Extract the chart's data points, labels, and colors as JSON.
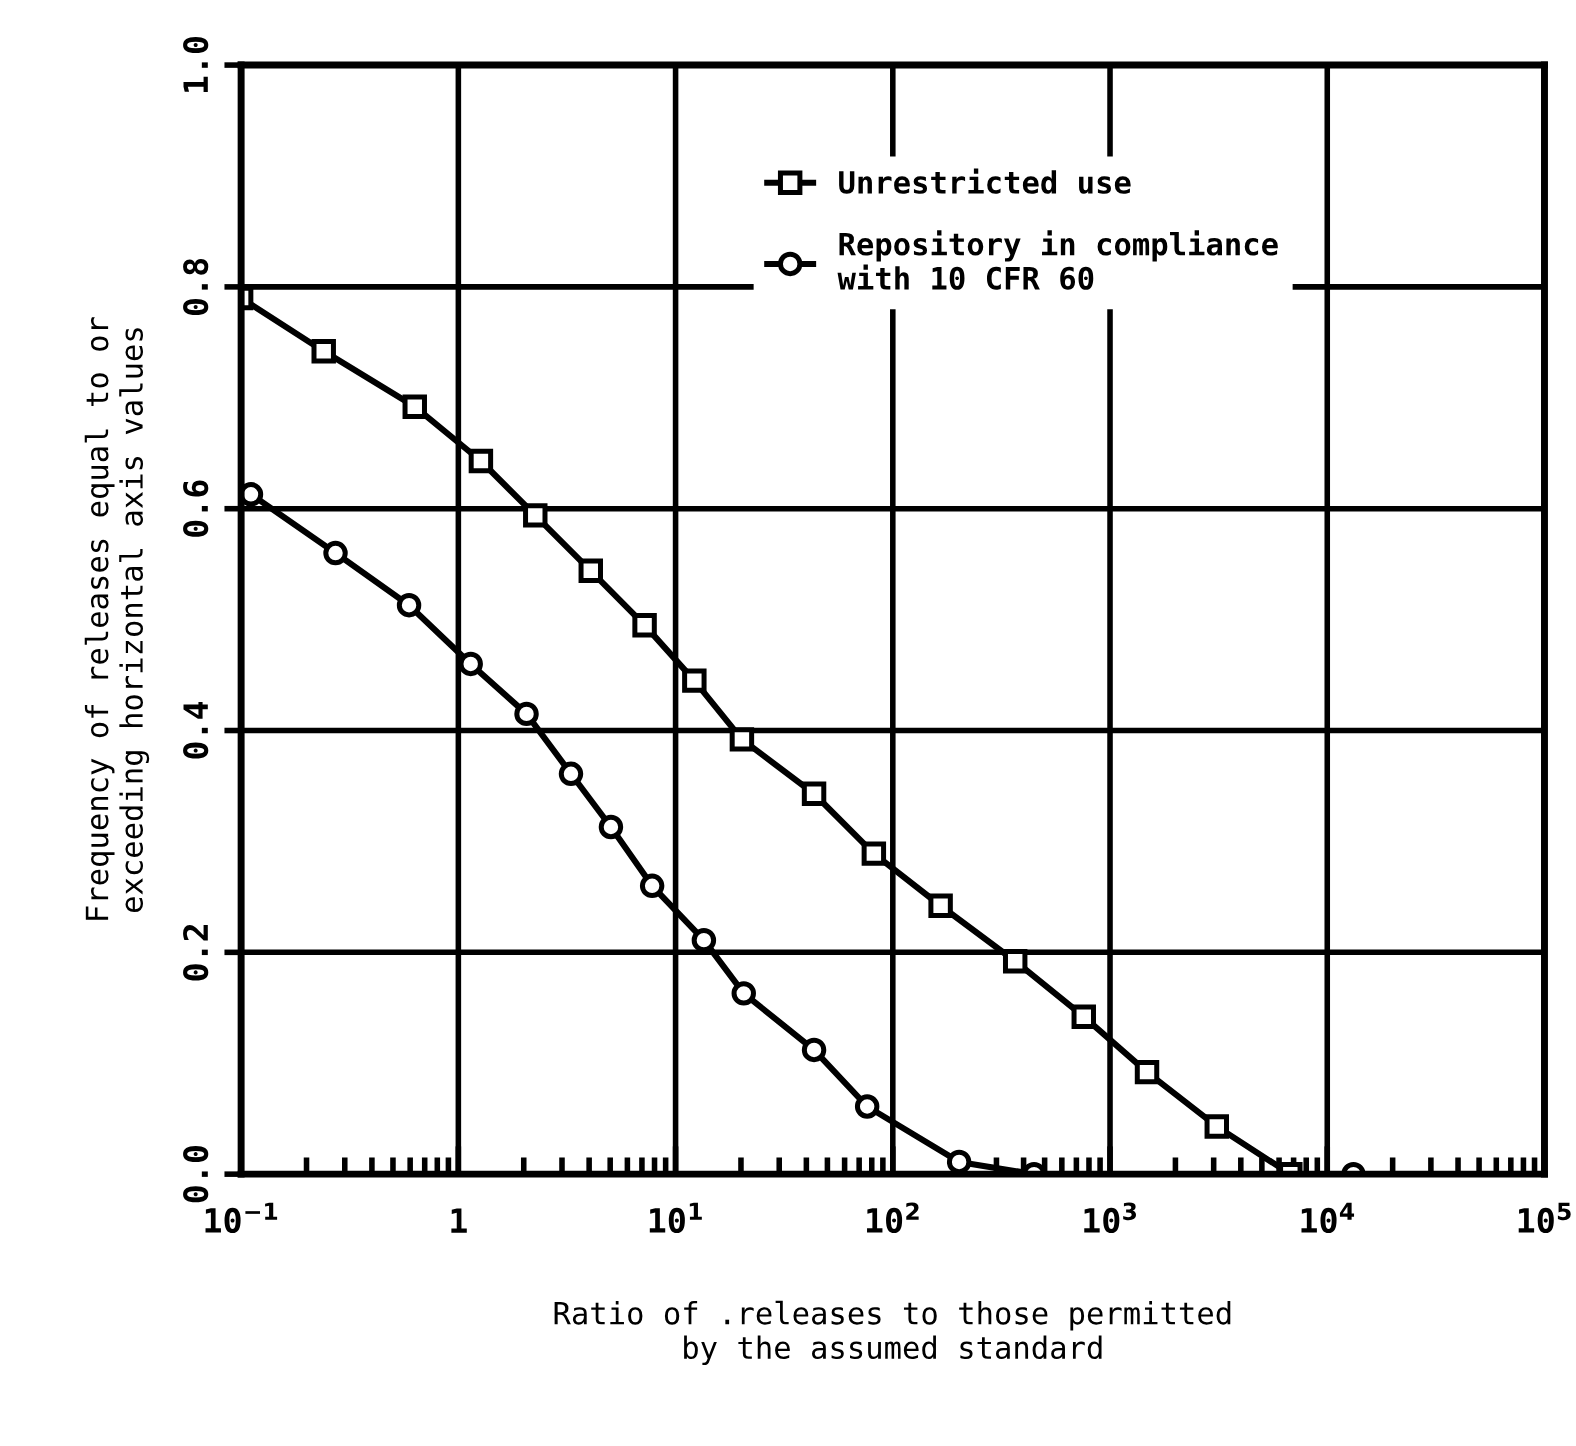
{
  "chart_data": {
    "type": "line",
    "xlabel": "Ratio of .releases to those permitted\nby the assumed standard",
    "ylabel": "Frequency of releases equal to or\nexceeding horizontal axis values",
    "log": "x",
    "xlim": [
      0.1,
      100000
    ],
    "ylim": [
      0,
      1.0
    ],
    "xticks": [
      {
        "value": 0.1,
        "label": "10$^{−1}$"
      },
      {
        "value": 1,
        "label": "1"
      },
      {
        "value": 10,
        "label": "10$^{1}$"
      },
      {
        "value": 100,
        "label": "10$^{2}$"
      },
      {
        "value": 1000,
        "label": "10$^{3}$"
      },
      {
        "value": 10000,
        "label": "10$^{4}$"
      },
      {
        "value": 100000,
        "label": "10$^{5}$"
      }
    ],
    "yticks": [
      {
        "value": 0,
        "label": "0.0"
      },
      {
        "value": 0.2,
        "label": "0.2"
      },
      {
        "value": 0.4,
        "label": "0.4"
      },
      {
        "value": 0.6,
        "label": "0.6"
      },
      {
        "value": 0.8,
        "label": "0.8"
      },
      {
        "value": 1.0,
        "label": "1.0"
      }
    ],
    "grid": true,
    "legend": "top",
    "line_style": "solid",
    "series": [
      {
        "name": "Unrestricted use",
        "color": "#000000",
        "marker": "square",
        "x": [
          0.1,
          0.24,
          0.63,
          1.27,
          2.26,
          4.07,
          7.2,
          12.2,
          20.2,
          43.4,
          81.8,
          166,
          366,
          757,
          1480,
          3100,
          6760
        ],
        "values": [
          0.79,
          0.742,
          0.692,
          0.643,
          0.594,
          0.544,
          0.495,
          0.445,
          0.392,
          0.343,
          0.289,
          0.242,
          0.192,
          0.142,
          0.092,
          0.043,
          0.0
        ]
      },
      {
        "name": "Repository in compliance\nwith 10 CFR 60",
        "color": "#000000",
        "marker": "circle",
        "x": [
          0.111,
          0.272,
          0.593,
          1.14,
          2.06,
          3.3,
          5.04,
          7.8,
          13.5,
          20.6,
          43.4,
          76.2,
          202,
          447,
          13200
        ],
        "values": [
          0.613,
          0.56,
          0.513,
          0.46,
          0.415,
          0.361,
          0.313,
          0.26,
          0.211,
          0.163,
          0.112,
          0.061,
          0.011,
          0.0,
          0.0
        ]
      }
    ]
  }
}
